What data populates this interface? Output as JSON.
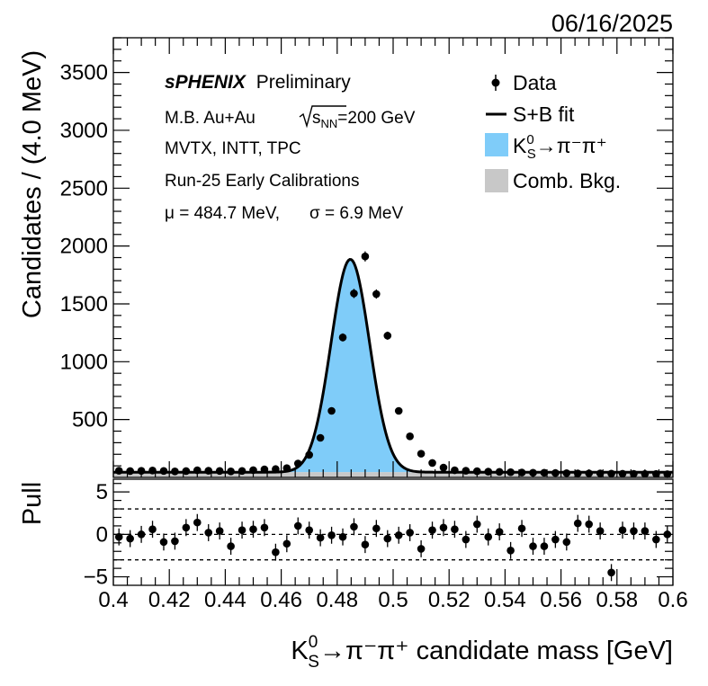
{
  "date": "06/16/2025",
  "annotations": {
    "experiment": "sPHENIX",
    "experiment_suffix": "Preliminary",
    "system": "M.B. Au+Au",
    "sqrt_s_label": "s",
    "sqrt_s_sub": "NN",
    "sqrt_s_value": "=200 GeV",
    "detectors": "MVTX, INTT, TPC",
    "calibration": "Run-25 Early Calibrations",
    "mu_text": "μ = 484.7 MeV,",
    "sigma_text": "σ = 6.9 MeV"
  },
  "legend": {
    "data": "Data",
    "fit": "S+B fit",
    "signal_K": "K",
    "signal_sup": "0",
    "signal_sub": "S",
    "signal_rest": "→π⁻π⁺",
    "background": "Comb. Bkg.",
    "colors": {
      "signal": "#7fccf9",
      "background": "#c8c8c8",
      "line": "#000000"
    }
  },
  "axes": {
    "ylabel_main": "Candidates / (4.0 MeV)",
    "ylabel_pull": "Pull",
    "xlabel_K": "K",
    "xlabel_sup": "0",
    "xlabel_sub": "S",
    "xlabel_rest": "→π⁻π⁺ candidate mass [GeV]"
  },
  "chart_data": [
    {
      "type": "scatter",
      "panel": "main",
      "xlim": [
        0.4,
        0.6
      ],
      "ylim": [
        0,
        3800
      ],
      "yticks": [
        500,
        1000,
        1500,
        2000,
        2500,
        3000,
        3500
      ],
      "fit": {
        "mu": 0.4847,
        "sigma": 0.0069,
        "amplitude": 1840,
        "background": 45
      },
      "x": [
        0.402,
        0.406,
        0.41,
        0.414,
        0.418,
        0.422,
        0.426,
        0.43,
        0.434,
        0.438,
        0.442,
        0.446,
        0.45,
        0.454,
        0.458,
        0.462,
        0.466,
        0.47,
        0.474,
        0.478,
        0.482,
        0.486,
        0.49,
        0.494,
        0.498,
        0.502,
        0.506,
        0.51,
        0.514,
        0.518,
        0.522,
        0.526,
        0.53,
        0.534,
        0.538,
        0.542,
        0.546,
        0.55,
        0.554,
        0.558,
        0.562,
        0.566,
        0.57,
        0.574,
        0.578,
        0.582,
        0.586,
        0.59,
        0.594,
        0.598
      ],
      "y": [
        58,
        55,
        57,
        60,
        56,
        52,
        55,
        62,
        58,
        56,
        52,
        56,
        63,
        70,
        72,
        80,
        120,
        195,
        342,
        575,
        1210,
        1590,
        1910,
        1585,
        1225,
        575,
        355,
        205,
        125,
        85,
        62,
        58,
        54,
        50,
        48,
        45,
        42,
        40,
        40,
        38,
        37,
        35,
        35,
        35,
        33,
        32,
        31,
        30,
        30,
        28
      ]
    },
    {
      "type": "scatter",
      "panel": "pull",
      "xlim": [
        0.4,
        0.6
      ],
      "ylim": [
        -6,
        6.5
      ],
      "yticks": [
        -5,
        0,
        5
      ],
      "dashed_lines": [
        -3,
        0,
        3
      ],
      "x": [
        0.402,
        0.406,
        0.41,
        0.414,
        0.418,
        0.422,
        0.426,
        0.43,
        0.434,
        0.438,
        0.442,
        0.446,
        0.45,
        0.454,
        0.458,
        0.462,
        0.466,
        0.47,
        0.474,
        0.478,
        0.482,
        0.486,
        0.49,
        0.494,
        0.498,
        0.502,
        0.506,
        0.51,
        0.514,
        0.518,
        0.522,
        0.526,
        0.53,
        0.534,
        0.538,
        0.542,
        0.546,
        0.55,
        0.554,
        0.558,
        0.562,
        0.566,
        0.57,
        0.574,
        0.578,
        0.582,
        0.586,
        0.59,
        0.594,
        0.598
      ],
      "y": [
        -0.3,
        -0.5,
        0,
        0.6,
        -0.9,
        -0.8,
        0.8,
        1.4,
        0.2,
        0.4,
        -1.4,
        0.5,
        0.6,
        0.8,
        -2.1,
        -1.1,
        1.0,
        0.5,
        -0.4,
        -0.1,
        -0.3,
        0.9,
        -1.2,
        0.7,
        -0.5,
        -0.1,
        0.2,
        -1.7,
        0.5,
        0.8,
        0.6,
        -0.6,
        1.2,
        -0.3,
        0.3,
        -1.9,
        0.7,
        -1.4,
        -1.4,
        -0.6,
        -0.9,
        1.3,
        1.2,
        0.4,
        -4.5,
        0.5,
        0.4,
        0.4,
        -0.6,
        0
      ]
    }
  ]
}
